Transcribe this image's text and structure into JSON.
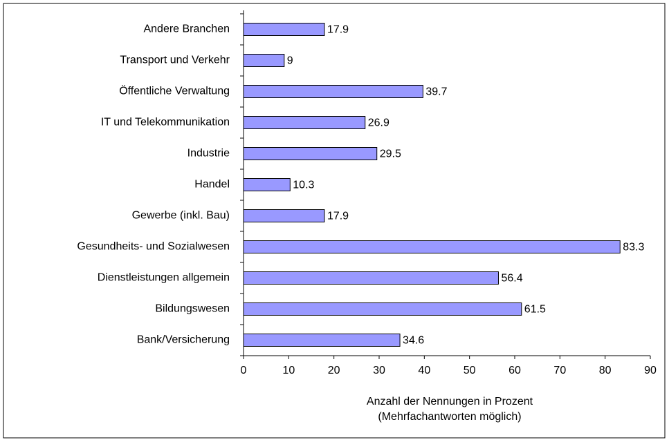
{
  "chart_data": {
    "type": "bar",
    "orientation": "horizontal",
    "categories": [
      "Andere Branchen",
      "Transport und Verkehr",
      "Öffentliche Verwaltung",
      "IT und Telekommunikation",
      "Industrie",
      "Handel",
      "Gewerbe (inkl. Bau)",
      "Gesundheits- und Sozialwesen",
      "Dienstleistungen allgemein",
      "Bildungswesen",
      "Bank/Versicherung"
    ],
    "values": [
      17.9,
      9,
      39.7,
      26.9,
      29.5,
      10.3,
      17.9,
      83.3,
      56.4,
      61.5,
      34.6
    ],
    "color": "#9999ff",
    "xlim": [
      0,
      90
    ],
    "xticks": [
      0,
      10,
      20,
      30,
      40,
      50,
      60,
      70,
      80,
      90
    ],
    "xlabel": [
      "Anzahl der Nennungen in Prozent",
      "(Mehrfachantworten möglich)"
    ]
  }
}
